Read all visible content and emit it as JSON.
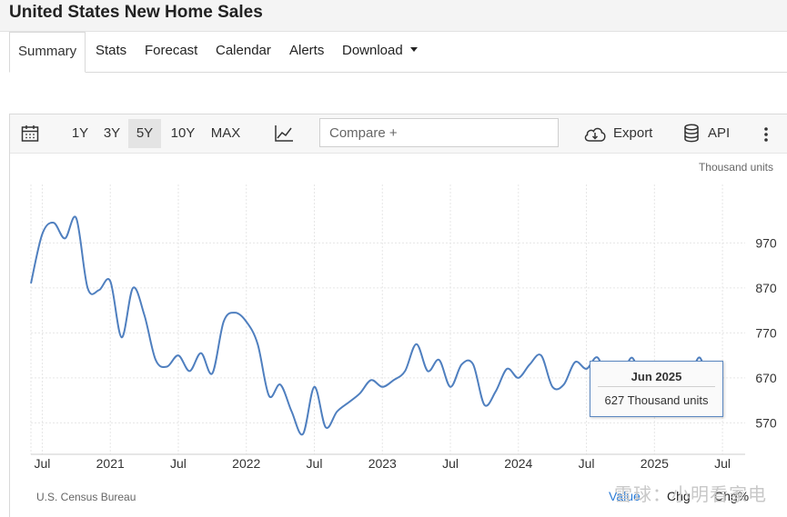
{
  "page": {
    "title": "United States New Home Sales"
  },
  "tabs": [
    {
      "label": "Summary",
      "active": true
    },
    {
      "label": "Stats"
    },
    {
      "label": "Forecast"
    },
    {
      "label": "Calendar"
    },
    {
      "label": "Alerts"
    },
    {
      "label": "Download"
    }
  ],
  "toolbar": {
    "ranges": [
      "1Y",
      "3Y",
      "5Y",
      "10Y",
      "MAX"
    ],
    "active_range": "5Y",
    "compare_placeholder": "Compare +",
    "export_label": "Export",
    "api_label": "API"
  },
  "chart_data": {
    "type": "line",
    "title": "",
    "unit_label": "Thousand units",
    "source": "U.S. Census Bureau",
    "ylim": [
      500,
      1100
    ],
    "yticks": [
      570,
      670,
      770,
      870,
      970
    ],
    "xticks": [
      {
        "date": "2020-07",
        "label": "Jul"
      },
      {
        "date": "2021-01",
        "label": "2021"
      },
      {
        "date": "2021-07",
        "label": "Jul"
      },
      {
        "date": "2022-01",
        "label": "2022"
      },
      {
        "date": "2022-07",
        "label": "Jul"
      },
      {
        "date": "2023-01",
        "label": "2023"
      },
      {
        "date": "2023-07",
        "label": "Jul"
      },
      {
        "date": "2024-01",
        "label": "2024"
      },
      {
        "date": "2024-07",
        "label": "Jul"
      },
      {
        "date": "2025-01",
        "label": "2025"
      },
      {
        "date": "2025-07",
        "label": "Jul"
      }
    ],
    "xlim": [
      "2020-06",
      "2025-09"
    ],
    "grid": true,
    "series": [
      {
        "color": "#4f7fbf",
        "x": [
          "2020-06",
          "2020-07",
          "2020-08",
          "2020-09",
          "2020-10",
          "2020-11",
          "2020-12",
          "2021-01",
          "2021-02",
          "2021-03",
          "2021-04",
          "2021-05",
          "2021-06",
          "2021-07",
          "2021-08",
          "2021-09",
          "2021-10",
          "2021-11",
          "2021-12",
          "2022-01",
          "2022-02",
          "2022-03",
          "2022-04",
          "2022-05",
          "2022-06",
          "2022-07",
          "2022-08",
          "2022-09",
          "2022-10",
          "2022-11",
          "2022-12",
          "2023-01",
          "2023-02",
          "2023-03",
          "2023-04",
          "2023-05",
          "2023-06",
          "2023-07",
          "2023-08",
          "2023-09",
          "2023-10",
          "2023-11",
          "2023-12",
          "2024-01",
          "2024-02",
          "2024-03",
          "2024-04",
          "2024-05",
          "2024-06",
          "2024-07",
          "2024-08",
          "2024-09",
          "2024-10",
          "2024-11",
          "2024-12",
          "2025-01",
          "2025-02",
          "2025-03",
          "2025-04",
          "2025-05",
          "2025-06"
        ],
        "y": [
          880,
          990,
          1015,
          980,
          1025,
          870,
          865,
          885,
          760,
          870,
          810,
          710,
          695,
          720,
          685,
          725,
          680,
          795,
          815,
          795,
          745,
          630,
          655,
          595,
          545,
          650,
          560,
          595,
          615,
          635,
          665,
          650,
          665,
          685,
          745,
          685,
          710,
          650,
          700,
          700,
          610,
          640,
          690,
          670,
          700,
          720,
          650,
          655,
          705,
          690,
          715,
          650,
          660,
          715,
          655,
          655,
          700,
          660,
          660,
          715,
          627
        ]
      }
    ]
  },
  "tooltip": {
    "date": "Jun 2025",
    "value": "627 Thousand units"
  },
  "bottom_tabs": [
    "Value",
    "Chg",
    "Chg%"
  ],
  "watermark": "雪球：小明看家电"
}
